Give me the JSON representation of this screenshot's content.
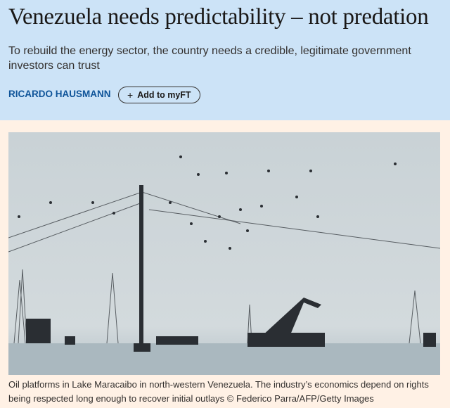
{
  "article": {
    "title": "Venezuela needs predictability – not predation",
    "standfirst": "To rebuild the energy sector, the country needs a credible, legitimate government investors can trust",
    "author": "RICARDO HAUSMANN",
    "add_to_myft": {
      "icon": "plus-icon",
      "label": "Add to myFT"
    }
  },
  "image": {
    "caption": "Oil platforms in Lake Maracaibo in north-western Venezuela. The industry’s economics depend on rights being respected long enough to recover initial outlays © Federico Parra/AFP/Getty Images"
  },
  "colors": {
    "header_bg": "#cce3f7",
    "page_bg": "#fff1e5",
    "author": "#0f5499"
  }
}
